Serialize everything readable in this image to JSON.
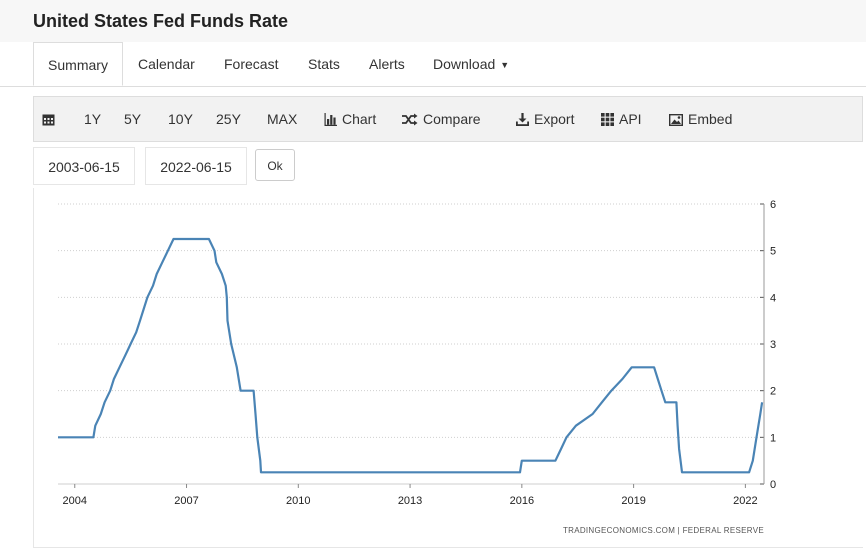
{
  "page": {
    "title": "United States Fed Funds Rate"
  },
  "tabs": [
    {
      "label": "Summary",
      "active": true
    },
    {
      "label": "Calendar"
    },
    {
      "label": "Forecast"
    },
    {
      "label": "Stats"
    },
    {
      "label": "Alerts"
    },
    {
      "label": "Download"
    }
  ],
  "toolbar": {
    "calendar_icon": "calendar-icon",
    "ranges": [
      "1Y",
      "5Y",
      "10Y",
      "25Y",
      "MAX"
    ],
    "chart_label": "Chart",
    "compare_label": "Compare",
    "export_label": "Export",
    "api_label": "API",
    "embed_label": "Embed"
  },
  "date_range": {
    "start": "2003-06-15",
    "end": "2022-06-15",
    "ok_label": "Ok"
  },
  "chart_data": {
    "type": "line",
    "title": "",
    "xlabel": "",
    "ylabel": "",
    "xlim": [
      2003.55,
      2022.5
    ],
    "ylim": [
      0,
      6
    ],
    "x_ticks": [
      "2004",
      "2007",
      "2010",
      "2013",
      "2016",
      "2019",
      "2022"
    ],
    "y_ticks": [
      "0",
      "1",
      "2",
      "3",
      "4",
      "5",
      "6"
    ],
    "y_axis_side": "right",
    "grid": "horizontal dotted",
    "line_color": "#4a84b5",
    "source": "TRADINGECONOMICS.COM | FEDERAL RESERVE",
    "series": [
      {
        "points": [
          [
            2003.55,
            1.0
          ],
          [
            2004.5,
            1.0
          ],
          [
            2004.55,
            1.25
          ],
          [
            2004.7,
            1.5
          ],
          [
            2004.8,
            1.75
          ],
          [
            2004.95,
            2.0
          ],
          [
            2005.05,
            2.25
          ],
          [
            2005.2,
            2.5
          ],
          [
            2005.35,
            2.75
          ],
          [
            2005.5,
            3.0
          ],
          [
            2005.65,
            3.25
          ],
          [
            2005.75,
            3.5
          ],
          [
            2005.85,
            3.75
          ],
          [
            2005.95,
            4.0
          ],
          [
            2006.1,
            4.25
          ],
          [
            2006.2,
            4.5
          ],
          [
            2006.35,
            4.75
          ],
          [
            2006.5,
            5.0
          ],
          [
            2006.65,
            5.25
          ],
          [
            2007.6,
            5.25
          ],
          [
            2007.75,
            5.0
          ],
          [
            2007.8,
            4.75
          ],
          [
            2007.95,
            4.5
          ],
          [
            2008.05,
            4.25
          ],
          [
            2008.08,
            4.0
          ],
          [
            2008.1,
            3.5
          ],
          [
            2008.2,
            3.0
          ],
          [
            2008.35,
            2.5
          ],
          [
            2008.45,
            2.0
          ],
          [
            2008.8,
            2.0
          ],
          [
            2008.85,
            1.5
          ],
          [
            2008.9,
            1.0
          ],
          [
            2008.98,
            0.5
          ],
          [
            2009.0,
            0.25
          ],
          [
            2015.95,
            0.25
          ],
          [
            2016.0,
            0.5
          ],
          [
            2016.9,
            0.5
          ],
          [
            2017.05,
            0.75
          ],
          [
            2017.2,
            1.0
          ],
          [
            2017.45,
            1.25
          ],
          [
            2017.9,
            1.5
          ],
          [
            2018.15,
            1.75
          ],
          [
            2018.4,
            2.0
          ],
          [
            2018.7,
            2.25
          ],
          [
            2018.95,
            2.5
          ],
          [
            2019.55,
            2.5
          ],
          [
            2019.65,
            2.25
          ],
          [
            2019.75,
            2.0
          ],
          [
            2019.85,
            1.75
          ],
          [
            2020.15,
            1.75
          ],
          [
            2020.18,
            1.25
          ],
          [
            2020.22,
            0.75
          ],
          [
            2020.3,
            0.25
          ],
          [
            2022.1,
            0.25
          ],
          [
            2022.2,
            0.5
          ],
          [
            2022.3,
            1.0
          ],
          [
            2022.4,
            1.5
          ],
          [
            2022.45,
            1.75
          ]
        ]
      }
    ]
  }
}
